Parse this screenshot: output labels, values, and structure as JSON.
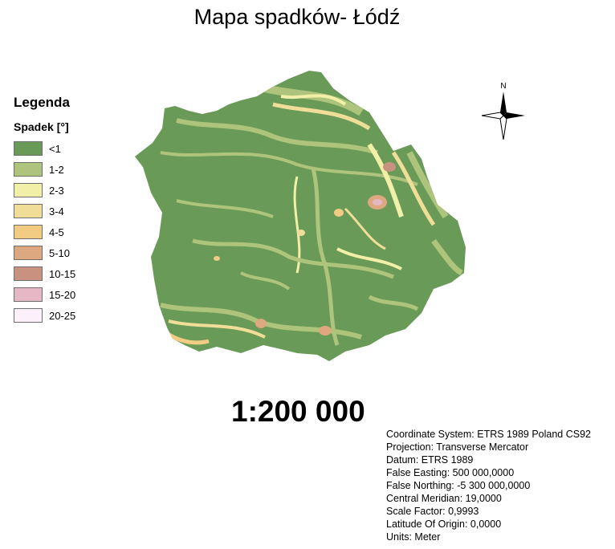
{
  "title": "Mapa spadków- Łódź",
  "legend": {
    "title": "Legenda",
    "subtitle": "Spadek [°]",
    "items": [
      {
        "label": "<1",
        "color": "#6a9a57"
      },
      {
        "label": "1-2",
        "color": "#aec47c"
      },
      {
        "label": "2-3",
        "color": "#f1efa8"
      },
      {
        "label": "3-4",
        "color": "#f0de98"
      },
      {
        "label": "4-5",
        "color": "#f3cc84"
      },
      {
        "label": "5-10",
        "color": "#dda780"
      },
      {
        "label": "10-15",
        "color": "#c99180"
      },
      {
        "label": "15-20",
        "color": "#e6b8c5"
      },
      {
        "label": "20-25",
        "color": "#fcf1fb"
      }
    ]
  },
  "north_arrow": {
    "label": "N",
    "icon": "north-arrow-icon"
  },
  "scale": "1:200 000",
  "info": [
    "Coordinate System: ETRS 1989 Poland CS92",
    "Projection: Transverse Mercator",
    "Datum: ETRS 1989",
    "False Easting: 500 000,0000",
    "False Northing: -5 300 000,0000",
    "Central Meridian: 19,0000",
    "Scale Factor: 0,9993",
    "Latitude Of Origin: 0,0000",
    "Units: Meter"
  ]
}
